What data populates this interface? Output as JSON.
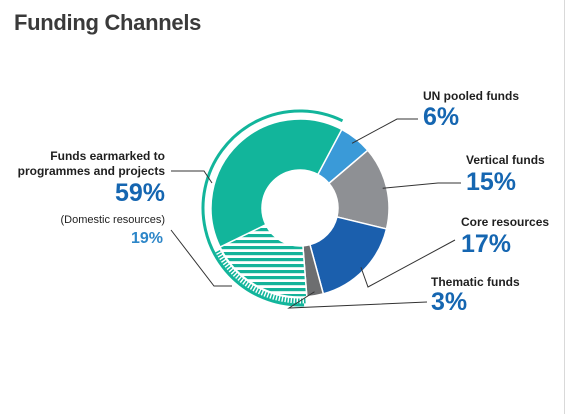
{
  "title": "Funding Channels",
  "chart_data": {
    "type": "pie",
    "slices": [
      {
        "label": "UN pooled funds",
        "value": 6,
        "display": "6%",
        "color": "#3a9ad8"
      },
      {
        "label": "Vertical funds",
        "value": 15,
        "display": "15%",
        "color": "#8e9094"
      },
      {
        "label": "Core resources",
        "value": 17,
        "display": "17%",
        "color": "#1b5fad"
      },
      {
        "label": "Thematic funds",
        "value": 3,
        "display": "3%",
        "color": "#6d6e70"
      },
      {
        "label": "(Domestic resources)",
        "value": 19,
        "display": "19%",
        "color": "#14b39a",
        "pattern": "hatched"
      },
      {
        "label": "Funds earmarked to programmes and projects",
        "value": 40,
        "display": "",
        "color": "#12b59b"
      }
    ],
    "group": {
      "label_lines": [
        "Funds earmarked to",
        "programmes and projects"
      ],
      "value": 59,
      "display": "59%",
      "color": "#12b59b"
    }
  }
}
